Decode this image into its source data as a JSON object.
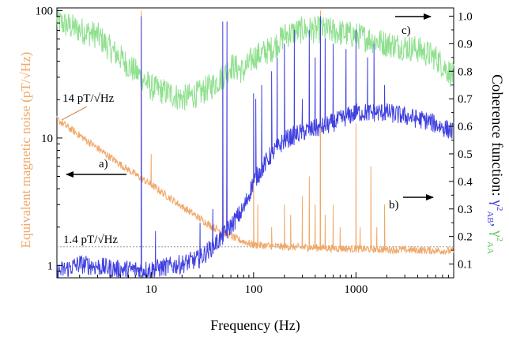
{
  "chart_data": {
    "type": "line",
    "x_scale": "log",
    "y_left_scale": "log",
    "xlim": [
      1.2,
      9000
    ],
    "ylim_left": [
      0.8,
      105
    ],
    "ylim_right": [
      0.05,
      1.03
    ],
    "xlabel": "Frequency (Hz)",
    "ylabel_left": "Equivalent magnetic noise (pT/√Hz)",
    "ylabel_right": {
      "main": "Coherence function: ",
      "gamma1": "γ",
      "sup1": "2",
      "sub1": "AB",
      "sep": ", ",
      "gamma2": "γ",
      "sup2": "2",
      "sub2": "AA"
    },
    "x_ticks": [
      10,
      100,
      1000
    ],
    "x_tick_labels": [
      "10",
      "100",
      "1000"
    ],
    "y_left_ticks": [
      1,
      10,
      100
    ],
    "y_left_tick_labels": [
      "1",
      "10",
      "100"
    ],
    "y_right_ticks": [
      0.1,
      0.2,
      0.3,
      0.4,
      0.5,
      0.6,
      0.7,
      0.8,
      0.9,
      1.0
    ],
    "y_right_tick_labels": [
      "0.1",
      "0.2",
      "0.3",
      "0.4",
      "0.5",
      "0.6",
      "0.7",
      "0.8",
      "0.9",
      "1.0"
    ],
    "grid": false,
    "legend": "none",
    "reference_line": {
      "y": 1.4,
      "label": "1.4 pT/√Hz",
      "color": "#999999"
    },
    "annotations": [
      {
        "text": "14 pT/√Hz",
        "x": 1.2,
        "y": 14
      },
      {
        "text": "a)",
        "arrow": "left",
        "axis": "left"
      },
      {
        "text": "b)",
        "arrow": "right",
        "axis": "right"
      },
      {
        "text": "c)",
        "arrow": "right",
        "axis": "right"
      }
    ],
    "series": [
      {
        "axis": "left",
        "color": "#f0a868",
        "noise_points": [
          [
            1.2,
            14
          ],
          [
            2,
            10.5
          ],
          [
            5,
            6.2
          ],
          [
            10,
            4.3
          ],
          [
            20,
            2.9
          ],
          [
            40,
            2.0
          ],
          [
            70,
            1.6
          ],
          [
            100,
            1.45
          ],
          [
            200,
            1.4
          ],
          [
            1000,
            1.35
          ],
          [
            9000,
            1.3
          ]
        ],
        "peaks": [
          [
            8,
            100
          ],
          [
            10,
            7.5
          ],
          [
            50,
            5
          ],
          [
            55,
            4
          ],
          [
            100,
            5
          ],
          [
            110,
            3
          ],
          [
            150,
            2
          ],
          [
            200,
            3
          ],
          [
            230,
            2.5
          ],
          [
            300,
            3.5
          ],
          [
            350,
            5
          ],
          [
            400,
            3
          ],
          [
            450,
            100
          ],
          [
            500,
            2.5
          ],
          [
            600,
            3
          ],
          [
            700,
            2
          ],
          [
            1000,
            13
          ],
          [
            1100,
            2
          ],
          [
            1400,
            6
          ],
          [
            1600,
            2
          ],
          [
            1900,
            3
          ]
        ]
      },
      {
        "axis": "right",
        "color": "#4040e0",
        "base_points": [
          [
            1.2,
            0.07
          ],
          [
            2,
            0.1
          ],
          [
            5,
            0.08
          ],
          [
            10,
            0.08
          ],
          [
            20,
            0.1
          ],
          [
            30,
            0.12
          ],
          [
            50,
            0.2
          ],
          [
            80,
            0.3
          ],
          [
            100,
            0.4
          ],
          [
            150,
            0.5
          ],
          [
            200,
            0.55
          ],
          [
            300,
            0.58
          ],
          [
            500,
            0.6
          ],
          [
            1000,
            0.65
          ],
          [
            2000,
            0.65
          ],
          [
            5000,
            0.62
          ],
          [
            9000,
            0.58
          ]
        ],
        "peaks": [
          [
            8,
            1.0
          ],
          [
            11,
            0.22
          ],
          [
            30,
            0.25
          ],
          [
            40,
            0.3
          ],
          [
            50,
            0.98
          ],
          [
            55,
            0.98
          ],
          [
            100,
            0.72
          ],
          [
            105,
            0.7
          ],
          [
            120,
            0.75
          ],
          [
            150,
            0.8
          ],
          [
            170,
            0.85
          ],
          [
            200,
            0.9
          ],
          [
            250,
            0.95
          ],
          [
            300,
            0.7
          ],
          [
            350,
            0.95
          ],
          [
            400,
            0.85
          ],
          [
            450,
            1.0
          ],
          [
            500,
            0.92
          ],
          [
            600,
            0.9
          ],
          [
            800,
            0.88
          ],
          [
            1000,
            0.95
          ],
          [
            1300,
            0.85
          ],
          [
            1500,
            0.9
          ],
          [
            1900,
            0.75
          ]
        ]
      },
      {
        "axis": "right",
        "color": "#8fe08f",
        "points": [
          [
            1.2,
            0.98
          ],
          [
            2,
            0.95
          ],
          [
            3,
            0.93
          ],
          [
            4,
            0.88
          ],
          [
            5,
            0.85
          ],
          [
            6,
            0.82
          ],
          [
            8,
            0.78
          ],
          [
            10,
            0.74
          ],
          [
            15,
            0.72
          ],
          [
            20,
            0.7
          ],
          [
            30,
            0.72
          ],
          [
            40,
            0.75
          ],
          [
            50,
            0.78
          ],
          [
            60,
            0.82
          ],
          [
            80,
            0.8
          ],
          [
            100,
            0.85
          ],
          [
            150,
            0.88
          ],
          [
            200,
            0.93
          ],
          [
            300,
            0.95
          ],
          [
            500,
            0.95
          ],
          [
            1000,
            0.93
          ],
          [
            2000,
            0.9
          ],
          [
            4000,
            0.88
          ],
          [
            6000,
            0.85
          ],
          [
            9000,
            0.78
          ]
        ]
      }
    ]
  }
}
